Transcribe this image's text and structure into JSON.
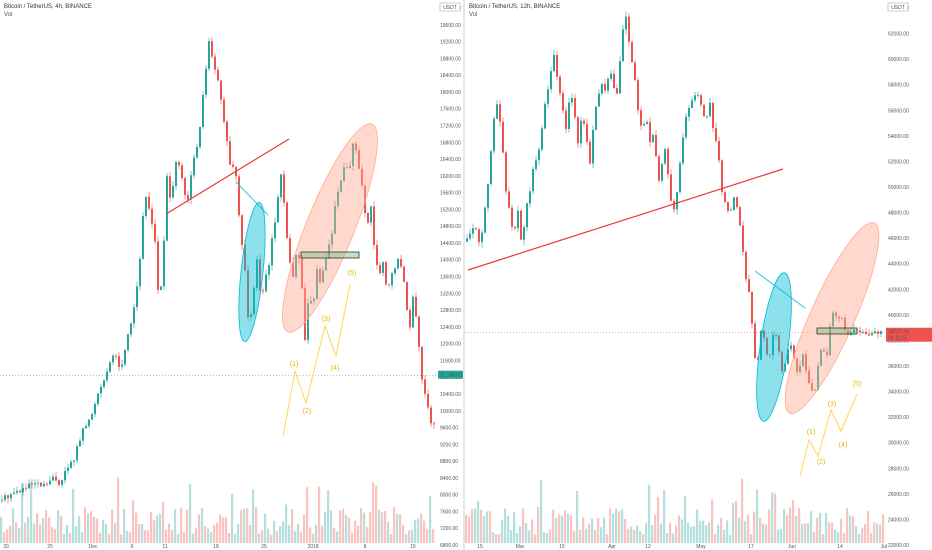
{
  "panels": [
    {
      "title": "Bitcoin / TetherUS, 4h, BINANCE",
      "vol_label": "Vol",
      "currency_badge": "USDT",
      "price_tag": {
        "value": "11,148.00",
        "color": "#26a69a"
      },
      "wave_labels": [
        "(1)",
        "(2)",
        "(3)",
        "(4)",
        "(5)"
      ]
    },
    {
      "title": "Bitcoin / TetherUS, 12h, BINANCE",
      "vol_label": "Vol",
      "currency_badge": "USDT",
      "price_tag": {
        "value": "38727.99",
        "sub": "09:11:15",
        "color": "#ef5350"
      },
      "wave_labels": [
        "(1)",
        "(2)",
        "(3)",
        "(4)",
        "(5)"
      ]
    }
  ],
  "chart_data": [
    {
      "type": "candlestick",
      "title": "Bitcoin / TetherUS, 4h, BINANCE",
      "x_tick_labels": [
        "20",
        "25",
        "Dec",
        "6",
        "11",
        "18",
        "25",
        "2018",
        "8",
        "15"
      ],
      "y_tick_labels": [
        "20000.00",
        "19600.00",
        "19200.00",
        "18800.00",
        "18400.00",
        "18000.00",
        "17600.00",
        "17200.00",
        "16800.00",
        "16400.00",
        "16000.00",
        "15600.00",
        "15200.00",
        "14800.00",
        "14400.00",
        "14000.00",
        "13600.00",
        "13200.00",
        "12800.00",
        "12400.00",
        "12000.00",
        "11600.00",
        "10800.00",
        "10400.00",
        "10000.00",
        "9600.00",
        "9200.00",
        "8800.00",
        "8400.00",
        "8000.00",
        "7600.00",
        "7200.00",
        "6800.00"
      ],
      "ylim": [
        6800,
        20600
      ],
      "close_path": [
        [
          0,
          7900
        ],
        [
          8,
          8050
        ],
        [
          16,
          8120
        ],
        [
          24,
          8200
        ],
        [
          32,
          8300
        ],
        [
          42,
          8250
        ],
        [
          52,
          8450
        ],
        [
          58,
          8350
        ],
        [
          66,
          8700
        ],
        [
          72,
          8900
        ],
        [
          78,
          9400
        ],
        [
          84,
          9800
        ],
        [
          90,
          10000
        ],
        [
          96,
          10600
        ],
        [
          102,
          11000
        ],
        [
          108,
          11300
        ],
        [
          114,
          11700
        ],
        [
          120,
          11200
        ],
        [
          126,
          12100
        ],
        [
          132,
          12700
        ],
        [
          138,
          13800
        ],
        [
          144,
          15800
        ],
        [
          150,
          15200
        ],
        [
          154,
          14600
        ],
        [
          158,
          12800
        ],
        [
          162,
          14000
        ],
        [
          166,
          16200
        ],
        [
          170,
          15400
        ],
        [
          174,
          16700
        ],
        [
          180,
          16300
        ],
        [
          186,
          15400
        ],
        [
          192,
          16600
        ],
        [
          198,
          17200
        ],
        [
          204,
          18800
        ],
        [
          208,
          19700
        ],
        [
          212,
          19100
        ],
        [
          218,
          18600
        ],
        [
          222,
          17700
        ],
        [
          226,
          17200
        ],
        [
          230,
          16200
        ],
        [
          234,
          16600
        ],
        [
          238,
          15200
        ],
        [
          244,
          13800
        ],
        [
          248,
          12300
        ],
        [
          252,
          13200
        ],
        [
          256,
          14100
        ],
        [
          260,
          13000
        ],
        [
          264,
          13700
        ],
        [
          268,
          14000
        ],
        [
          272,
          14800
        ],
        [
          276,
          15400
        ],
        [
          280,
          16300
        ],
        [
          284,
          15200
        ],
        [
          288,
          14200
        ],
        [
          292,
          13600
        ],
        [
          296,
          14500
        ],
        [
          300,
          13700
        ],
        [
          304,
          12100
        ],
        [
          308,
          13200
        ],
        [
          312,
          12900
        ],
        [
          316,
          13800
        ],
        [
          320,
          13400
        ],
        [
          324,
          14100
        ],
        [
          330,
          14600
        ],
        [
          336,
          15800
        ],
        [
          340,
          16100
        ],
        [
          344,
          16600
        ],
        [
          348,
          16400
        ],
        [
          352,
          17000
        ],
        [
          356,
          16800
        ],
        [
          362,
          15800
        ],
        [
          366,
          14800
        ],
        [
          370,
          15400
        ],
        [
          374,
          14200
        ],
        [
          378,
          13600
        ],
        [
          382,
          14000
        ],
        [
          386,
          13200
        ],
        [
          392,
          13800
        ],
        [
          398,
          14100
        ],
        [
          404,
          13400
        ],
        [
          408,
          12200
        ],
        [
          412,
          13100
        ],
        [
          416,
          12400
        ],
        [
          420,
          11200
        ],
        [
          424,
          10700
        ],
        [
          428,
          10200
        ],
        [
          432,
          9400
        ],
        [
          436,
          11100
        ]
      ]
    },
    {
      "type": "candlestick",
      "title": "Bitcoin / TetherUS, 12h, BINANCE",
      "x_tick_labels": [
        "15",
        "Mar",
        "15",
        "Apr",
        "12",
        "May",
        "17",
        "Jun",
        "14",
        "Jul"
      ],
      "y_tick_labels": [
        "64000.00",
        "62000.00",
        "60000.00",
        "58000.00",
        "56000.00",
        "54000.00",
        "52000.00",
        "50000.00",
        "48000.00",
        "46000.00",
        "44000.00",
        "42000.00",
        "40000.00",
        "38000.00",
        "36000.00",
        "34000.00",
        "32000.00",
        "30000.00",
        "28000.00",
        "26000.00",
        "24000.00",
        "22000.00"
      ],
      "ylim": [
        21500,
        65500
      ],
      "close_path": [
        [
          0,
          46200
        ],
        [
          8,
          47500
        ],
        [
          14,
          46000
        ],
        [
          20,
          49500
        ],
        [
          24,
          52500
        ],
        [
          28,
          56500
        ],
        [
          32,
          57500
        ],
        [
          36,
          54500
        ],
        [
          40,
          50500
        ],
        [
          44,
          48200
        ],
        [
          48,
          47000
        ],
        [
          52,
          48500
        ],
        [
          56,
          45800
        ],
        [
          60,
          48600
        ],
        [
          64,
          50500
        ],
        [
          68,
          52500
        ],
        [
          72,
          53500
        ],
        [
          76,
          55500
        ],
        [
          80,
          57800
        ],
        [
          84,
          60000
        ],
        [
          88,
          61500
        ],
        [
          92,
          59000
        ],
        [
          96,
          57200
        ],
        [
          100,
          55200
        ],
        [
          104,
          58500
        ],
        [
          108,
          57300
        ],
        [
          112,
          54300
        ],
        [
          116,
          56500
        ],
        [
          120,
          55000
        ],
        [
          124,
          52500
        ],
        [
          128,
          56200
        ],
        [
          132,
          58000
        ],
        [
          136,
          59200
        ],
        [
          140,
          58300
        ],
        [
          144,
          60600
        ],
        [
          148,
          59000
        ],
        [
          152,
          58300
        ],
        [
          156,
          63200
        ],
        [
          160,
          64600
        ],
        [
          164,
          62000
        ],
        [
          168,
          60000
        ],
        [
          172,
          57000
        ],
        [
          176,
          55300
        ],
        [
          180,
          56500
        ],
        [
          184,
          54400
        ],
        [
          188,
          55200
        ],
        [
          192,
          50800
        ],
        [
          196,
          52800
        ],
        [
          200,
          54000
        ],
        [
          204,
          49500
        ],
        [
          208,
          49000
        ],
        [
          212,
          51000
        ],
        [
          216,
          54000
        ],
        [
          220,
          56500
        ],
        [
          224,
          57600
        ],
        [
          228,
          58000
        ],
        [
          232,
          58300
        ],
        [
          236,
          57000
        ],
        [
          240,
          56200
        ],
        [
          244,
          57500
        ],
        [
          248,
          55000
        ],
        [
          252,
          53600
        ],
        [
          256,
          50500
        ],
        [
          260,
          49000
        ],
        [
          264,
          48200
        ],
        [
          268,
          50000
        ],
        [
          272,
          48800
        ],
        [
          276,
          46000
        ],
        [
          280,
          43000
        ],
        [
          284,
          42000
        ],
        [
          288,
          37000
        ],
        [
          292,
          36600
        ],
        [
          296,
          39500
        ],
        [
          300,
          37000
        ],
        [
          304,
          36800
        ],
        [
          308,
          39000
        ],
        [
          312,
          37600
        ],
        [
          316,
          35600
        ],
        [
          320,
          36200
        ],
        [
          324,
          38200
        ],
        [
          328,
          36700
        ],
        [
          332,
          35100
        ],
        [
          336,
          37200
        ],
        [
          340,
          35400
        ],
        [
          344,
          34200
        ],
        [
          348,
          33600
        ],
        [
          352,
          35800
        ],
        [
          356,
          37500
        ],
        [
          360,
          36500
        ],
        [
          364,
          39000
        ],
        [
          368,
          40500
        ],
        [
          372,
          39600
        ],
        [
          376,
          39800
        ],
        [
          380,
          38728
        ]
      ]
    }
  ]
}
